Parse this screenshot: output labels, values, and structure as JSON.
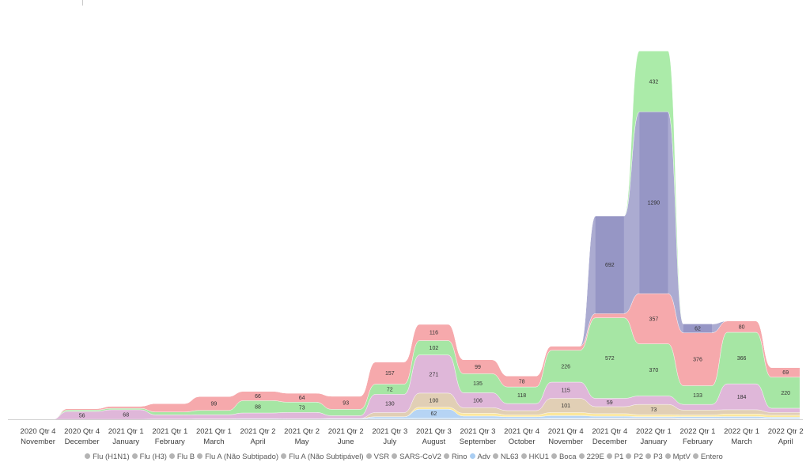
{
  "chart_data": {
    "type": "area",
    "categories": [
      {
        "quarter": "2020 Qtr 4",
        "month": "November"
      },
      {
        "quarter": "2020 Qtr 4",
        "month": "December"
      },
      {
        "quarter": "2021 Qtr 1",
        "month": "January"
      },
      {
        "quarter": "2021 Qtr 1",
        "month": "February"
      },
      {
        "quarter": "2021 Qtr 1",
        "month": "March"
      },
      {
        "quarter": "2021 Qtr 2",
        "month": "April"
      },
      {
        "quarter": "2021 Qtr 2",
        "month": "May"
      },
      {
        "quarter": "2021 Qtr 2",
        "month": "June"
      },
      {
        "quarter": "2021 Qtr 3",
        "month": "July"
      },
      {
        "quarter": "2021 Qtr 3",
        "month": "August"
      },
      {
        "quarter": "2021 Qtr 3",
        "month": "September"
      },
      {
        "quarter": "2021 Qtr 4",
        "month": "October"
      },
      {
        "quarter": "2021 Qtr 4",
        "month": "November"
      },
      {
        "quarter": "2021 Qtr 4",
        "month": "December"
      },
      {
        "quarter": "2022 Qtr 1",
        "month": "January"
      },
      {
        "quarter": "2022 Qtr 1",
        "month": "February"
      },
      {
        "quarter": "2022 Qtr 1",
        "month": "March"
      },
      {
        "quarter": "2022 Qtr 2",
        "month": "April"
      }
    ],
    "series": [
      {
        "name": "Flu (H1N1)",
        "color": "#b4b4b4",
        "values": [
          0,
          0,
          0,
          0,
          0,
          0,
          0,
          0,
          0,
          0,
          0,
          0,
          0,
          0,
          0,
          0,
          0,
          0
        ]
      },
      {
        "name": "Flu (H3)",
        "color": "#b4b4b4",
        "values": [
          0,
          0,
          0,
          0,
          0,
          0,
          0,
          0,
          0,
          0,
          0,
          0,
          3,
          6,
          8,
          5,
          4,
          2
        ]
      },
      {
        "name": "Flu B",
        "color": "#b4b4b4",
        "values": [
          0,
          0,
          0,
          0,
          0,
          0,
          0,
          0,
          0,
          0,
          0,
          0,
          0,
          0,
          0,
          0,
          0,
          0
        ]
      },
      {
        "name": "Flu A (Não Subtipado)",
        "color": "#b4b4b4",
        "values": [
          0,
          0,
          0,
          0,
          0,
          0,
          0,
          0,
          0,
          0,
          0,
          0,
          0,
          0,
          0,
          0,
          0,
          0
        ]
      },
      {
        "name": "Flu A (Não Subtipável)",
        "color": "#b4b4b4",
        "values": [
          0,
          0,
          0,
          0,
          0,
          0,
          0,
          0,
          0,
          0,
          0,
          0,
          0,
          0,
          0,
          0,
          0,
          0
        ]
      },
      {
        "name": "VSR",
        "color": "#b4b4b4",
        "values": [
          0,
          0,
          0,
          2,
          3,
          5,
          4,
          6,
          8,
          10,
          8,
          6,
          5,
          4,
          3,
          4,
          6,
          5
        ]
      },
      {
        "name": "SARS-CoV2",
        "color": "#b4b4b4",
        "values": [
          0,
          0,
          0,
          0,
          0,
          0,
          0,
          0,
          0,
          0,
          0,
          0,
          0,
          0,
          0,
          0,
          0,
          0
        ]
      },
      {
        "name": "Rino",
        "color": "#b4b4b4",
        "values": [
          0,
          0,
          0,
          0,
          0,
          0,
          0,
          0,
          0,
          0,
          0,
          0,
          0,
          0,
          0,
          0,
          0,
          0
        ]
      },
      {
        "name": "Adv",
        "color": "#a9cdf2",
        "values": [
          0,
          0,
          0,
          0,
          0,
          0,
          0,
          0,
          10,
          62,
          15,
          12,
          18,
          12,
          8,
          10,
          10,
          8
        ]
      },
      {
        "name": "NL63",
        "color": "#b4b4b4",
        "values": [
          0,
          0,
          0,
          0,
          0,
          0,
          0,
          0,
          0,
          0,
          0,
          0,
          0,
          0,
          0,
          0,
          0,
          0
        ]
      },
      {
        "name": "HKU1",
        "color": "#b4b4b4",
        "values": [
          0,
          0,
          0,
          0,
          0,
          0,
          0,
          0,
          0,
          0,
          0,
          0,
          0,
          0,
          0,
          0,
          0,
          0
        ]
      },
      {
        "name": "Boca",
        "color": "#b4b4b4",
        "values": [
          0,
          0,
          0,
          0,
          0,
          0,
          0,
          0,
          0,
          0,
          0,
          0,
          0,
          0,
          0,
          0,
          0,
          0
        ]
      },
      {
        "name": "229E",
        "color": "#b4b4b4",
        "values": [
          0,
          0,
          0,
          0,
          0,
          0,
          0,
          0,
          0,
          0,
          0,
          0,
          0,
          0,
          0,
          0,
          0,
          0
        ]
      },
      {
        "name": "P1",
        "color": "#b4b4b4",
        "values": [
          0,
          0,
          0,
          0,
          0,
          0,
          0,
          0,
          0,
          0,
          0,
          0,
          0,
          0,
          0,
          0,
          0,
          0
        ]
      },
      {
        "name": "P2",
        "color": "#b4b4b4",
        "values": [
          0,
          0,
          0,
          0,
          0,
          0,
          0,
          0,
          0,
          0,
          0,
          0,
          0,
          0,
          0,
          0,
          0,
          0
        ]
      },
      {
        "name": "P3",
        "color": "#b4b4b4",
        "values": [
          0,
          0,
          0,
          0,
          0,
          0,
          0,
          0,
          0,
          0,
          0,
          0,
          0,
          0,
          0,
          0,
          0,
          0
        ]
      },
      {
        "name": "MptV",
        "color": "#b4b4b4",
        "values": [
          0,
          0,
          0,
          0,
          0,
          0,
          0,
          0,
          0,
          0,
          0,
          0,
          0,
          0,
          0,
          0,
          0,
          0
        ]
      },
      {
        "name": "Entero",
        "color": "#b4b4b4",
        "values": [
          0,
          0,
          0,
          0,
          0,
          0,
          0,
          0,
          0,
          0,
          0,
          0,
          0,
          0,
          0,
          0,
          0,
          0
        ]
      }
    ],
    "bands": [
      {
        "color": "#fbe38a",
        "values": [
          0,
          0,
          0,
          0,
          0,
          0,
          0,
          0,
          0,
          14,
          20,
          14,
          22,
          18,
          14,
          12,
          18,
          14
        ]
      },
      {
        "color": "#dcc7a8",
        "values": [
          0,
          0,
          0,
          0,
          0,
          0,
          0,
          0,
          30,
          100,
          40,
          30,
          101,
          50,
          73,
          35,
          30,
          20
        ]
      },
      {
        "color": "#d9aad2",
        "values": [
          0,
          56,
          68,
          30,
          30,
          40,
          45,
          20,
          130,
          271,
          106,
          50,
          115,
          59,
          60,
          40,
          184,
          30
        ]
      },
      {
        "color": "#96e294",
        "values": [
          0,
          10,
          10,
          20,
          30,
          88,
          73,
          45,
          72,
          102,
          135,
          118,
          226,
          572,
          370,
          133,
          366,
          220
        ]
      },
      {
        "color": "#f49a9e",
        "values": [
          0,
          10,
          15,
          60,
          99,
          66,
          64,
          93,
          157,
          116,
          99,
          78,
          30,
          30,
          357,
          376,
          80,
          69
        ]
      },
      {
        "color": "#9c9cc9",
        "values": [
          0,
          0,
          0,
          0,
          0,
          0,
          0,
          0,
          0,
          0,
          0,
          0,
          0,
          692,
          1290,
          62,
          0,
          0
        ]
      },
      {
        "color": "#9ce89a",
        "values": [
          0,
          0,
          0,
          0,
          0,
          0,
          0,
          0,
          0,
          0,
          0,
          0,
          0,
          0,
          432,
          0,
          0,
          0
        ]
      }
    ],
    "labels": [
      {
        "col": 1,
        "band": 2,
        "text": "56"
      },
      {
        "col": 2,
        "band": 2,
        "text": "68"
      },
      {
        "col": 4,
        "band": 4,
        "text": "99"
      },
      {
        "col": 5,
        "band": 3,
        "text": "88"
      },
      {
        "col": 5,
        "band": 4,
        "text": "66"
      },
      {
        "col": 6,
        "band": 3,
        "text": "73"
      },
      {
        "col": 6,
        "band": 4,
        "text": "64"
      },
      {
        "col": 7,
        "band": 4,
        "text": "93"
      },
      {
        "col": 8,
        "band": 4,
        "text": "157"
      },
      {
        "col": 8,
        "band": 2,
        "text": "130"
      },
      {
        "col": 8,
        "band": 3,
        "text": "72"
      },
      {
        "col": 9,
        "band": 2,
        "text": "271"
      },
      {
        "col": 9,
        "band": 4,
        "text": "116"
      },
      {
        "col": 9,
        "band": 3,
        "text": "102"
      },
      {
        "col": 9,
        "band": 1,
        "text": "100"
      },
      {
        "col": 9,
        "band": "adv",
        "text": "62"
      },
      {
        "col": 10,
        "band": 3,
        "text": "135"
      },
      {
        "col": 10,
        "band": 2,
        "text": "106"
      },
      {
        "col": 10,
        "band": 4,
        "text": "99"
      },
      {
        "col": 11,
        "band": 3,
        "text": "118"
      },
      {
        "col": 11,
        "band": 4,
        "text": "78"
      },
      {
        "col": 12,
        "band": 3,
        "text": "226"
      },
      {
        "col": 12,
        "band": 2,
        "text": "115"
      },
      {
        "col": 12,
        "band": 1,
        "text": "101"
      },
      {
        "col": 13,
        "band": 5,
        "text": "692"
      },
      {
        "col": 13,
        "band": 3,
        "text": "572"
      },
      {
        "col": 13,
        "band": 2,
        "text": "59"
      },
      {
        "col": 14,
        "band": 5,
        "text": "1290"
      },
      {
        "col": 14,
        "band": 6,
        "text": "432"
      },
      {
        "col": 14,
        "band": 3,
        "text": "370"
      },
      {
        "col": 14,
        "band": 4,
        "text": "357"
      },
      {
        "col": 14,
        "band": 1,
        "text": "73"
      },
      {
        "col": 15,
        "band": 4,
        "text": "376"
      },
      {
        "col": 15,
        "band": 3,
        "text": "133"
      },
      {
        "col": 15,
        "band": 5,
        "text": "62"
      },
      {
        "col": 16,
        "band": 3,
        "text": "366"
      },
      {
        "col": 16,
        "band": 2,
        "text": "184"
      },
      {
        "col": 16,
        "band": 4,
        "text": "80"
      },
      {
        "col": 17,
        "band": 3,
        "text": "220"
      },
      {
        "col": 17,
        "band": 4,
        "text": "69"
      }
    ],
    "legend_position": "bottom",
    "grid": false
  }
}
